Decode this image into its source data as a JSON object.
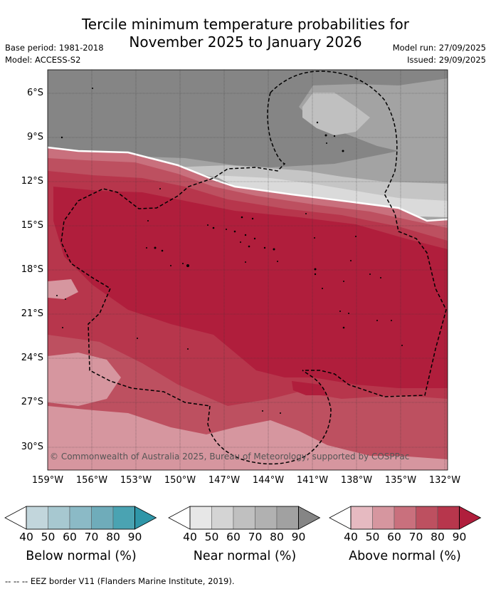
{
  "title": {
    "line1": "Tercile minimum temperature probabilities for",
    "line2": "November 2025 to January 2026"
  },
  "metadata": {
    "base_period": "Base period: 1981-2018",
    "model": "Model: ACCESS-S2",
    "model_run": "Model run: 27/09/2025",
    "issued": "Issued: 29/09/2025"
  },
  "map": {
    "copyright": "© Commonwealth of Australia 2025, Bureau of Meteorology, supported by COSPPac",
    "latitude_labels": [
      "6°S",
      "9°S",
      "12°S",
      "15°S",
      "18°S",
      "21°S",
      "24°S",
      "27°S",
      "30°S"
    ],
    "longitude_labels": [
      "159°W",
      "156°W",
      "153°W",
      "150°W",
      "147°W",
      "144°W",
      "141°W",
      "138°W",
      "135°W",
      "132°W"
    ]
  },
  "colorbars": [
    {
      "name": "below",
      "title": "Below normal (%)",
      "ticks": [
        "40",
        "50",
        "60",
        "70",
        "80",
        "90"
      ],
      "colors": [
        "#ffffff",
        "#c2d6dc",
        "#a7c8d0",
        "#8bbac6",
        "#6facba",
        "#4aa3b2",
        "#2f96a8"
      ]
    },
    {
      "name": "near",
      "title": "Near normal (%)",
      "ticks": [
        "40",
        "50",
        "60",
        "70",
        "80",
        "90"
      ],
      "colors": [
        "#ffffff",
        "#e7e7e7",
        "#d4d4d4",
        "#c0c0c0",
        "#b1b1b1",
        "#a1a1a1",
        "#858585"
      ]
    },
    {
      "name": "above",
      "title": "Above normal (%)",
      "ticks": [
        "40",
        "50",
        "60",
        "70",
        "80",
        "90"
      ],
      "colors": [
        "#ffffff",
        "#e6bac1",
        "#d6969f",
        "#c9707d",
        "#bd5060",
        "#b7364c",
        "#b01e3c"
      ]
    }
  ],
  "footer": "--  --  -- EEZ border V11 (Flanders Marine Institute, 2019)."
}
